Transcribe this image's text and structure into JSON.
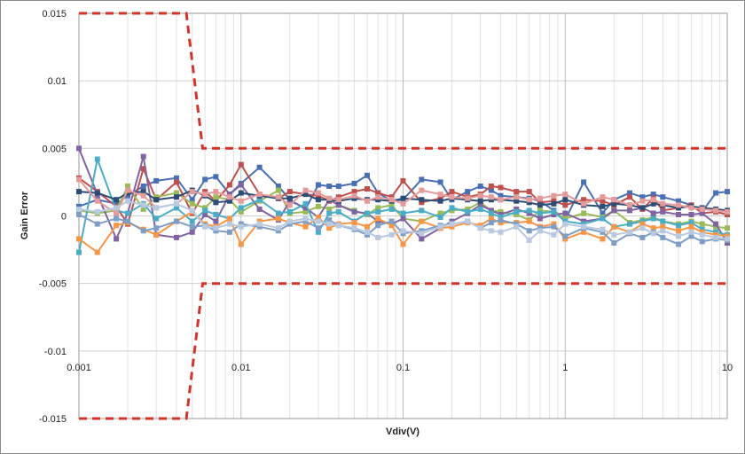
{
  "chart_data": {
    "type": "line",
    "xlabel": "Vdiv(V)",
    "ylabel": "Gain Error",
    "x_scale": "log",
    "xlim": [
      0.001,
      10
    ],
    "ylim": [
      -0.015,
      0.015
    ],
    "grid": true,
    "legend": "none",
    "x_tick_labels": [
      "0.001",
      "0.01",
      "0.1",
      "1",
      "10"
    ],
    "y_tick_labels": [
      "0.015",
      "0.01",
      "0.005",
      "0",
      "-0.005",
      "-0.01",
      "-0.015"
    ],
    "x": [
      0.001,
      0.0013,
      0.0017,
      0.002,
      0.0025,
      0.003,
      0.004,
      0.005,
      0.006,
      0.007,
      0.0085,
      0.01,
      0.013,
      0.017,
      0.02,
      0.025,
      0.03,
      0.035,
      0.04,
      0.05,
      0.06,
      0.07,
      0.085,
      0.1,
      0.13,
      0.17,
      0.2,
      0.25,
      0.3,
      0.35,
      0.4,
      0.5,
      0.6,
      0.7,
      0.85,
      1,
      1.3,
      1.7,
      2,
      2.5,
      3,
      3.5,
      4,
      5,
      6,
      7,
      8.5,
      10
    ],
    "limits": [
      {
        "name": "upper",
        "color": "#d2332b",
        "x": [
          0.001,
          0.0046,
          0.0058,
          10
        ],
        "y": [
          0.015,
          0.015,
          0.005,
          0.005
        ]
      },
      {
        "name": "lower",
        "color": "#d2332b",
        "x": [
          0.001,
          0.0046,
          0.0058,
          10
        ],
        "y": [
          -0.015,
          -0.015,
          -0.005,
          -0.005
        ]
      }
    ],
    "series": [
      {
        "color": "#4a6fb5",
        "values": [
          0.0007,
          0.0012,
          0.0009,
          0.0015,
          0.0022,
          0.0026,
          0.0028,
          0.0012,
          0.0027,
          0.0029,
          0.0016,
          0.0024,
          0.0036,
          0.0022,
          0.0012,
          0.0005,
          0.0023,
          0.0022,
          0.0022,
          0.0024,
          0.003,
          0.0017,
          0.0011,
          0.0012,
          0.0027,
          0.0025,
          0.0012,
          0.0018,
          0.0022,
          0.0019,
          0.0015,
          0.0014,
          0.0013,
          0.0011,
          0.0004,
          -0.0003,
          0.0025,
          0.0002,
          0.0012,
          0.0017,
          0.0014,
          0.0016,
          0.0014,
          0.0011,
          0.0008,
          0.0003,
          0.0017,
          0.0018
        ]
      },
      {
        "color": "#c0504d",
        "values": [
          0.0028,
          0.0018,
          0.0007,
          -0.0006,
          0.0035,
          0.0012,
          0.0025,
          0.0002,
          0.0018,
          0.0011,
          0.0023,
          0.0038,
          0.0016,
          0.0013,
          0.0018,
          0.0016,
          0.0015,
          0.0011,
          0.0014,
          0.0018,
          0.002,
          0.0017,
          0.0014,
          0.0026,
          0.001,
          0.0013,
          0.0018,
          0.0014,
          0.0016,
          0.0022,
          0.0021,
          0.0018,
          0.0018,
          0.001,
          0.0011,
          0.0008,
          0.0012,
          0.0011,
          0.0008,
          0.0014,
          0.0005,
          0.0013,
          0.0004,
          0.0006,
          0.0008,
          0.0002,
          0.0003,
          0.0001
        ]
      },
      {
        "color": "#9bbb59",
        "values": [
          0.0004,
          0.0002,
          0.0004,
          0.0022,
          0.0005,
          0.0014,
          0.0017,
          0.0009,
          0.0006,
          0.0014,
          0.0012,
          0.0003,
          0.0011,
          0.0019,
          0.0002,
          0.0003,
          0.0007,
          0.0005,
          0.0008,
          0.0004,
          0.0001,
          0.0006,
          0.0008,
          -0.0002,
          -0.0004,
          0.0002,
          0.0004,
          0.0005,
          0.001,
          0.0004,
          0.0003,
          0.0001,
          -0.0003,
          0.0004,
          0.0003,
          -0.0002,
          0.0002,
          -0.0001,
          0.0004,
          -0.0005,
          -0.0003,
          -0.0001,
          -0.0004,
          -0.0006,
          -0.0004,
          -0.0006,
          -0.0008,
          -0.0009
        ]
      },
      {
        "color": "#8064a2",
        "values": [
          0.005,
          0.0016,
          -0.0017,
          0.0002,
          0.0044,
          -0.0014,
          -0.0016,
          -0.0012,
          0.0001,
          -0.0004,
          0.0016,
          0.0023,
          0.0005,
          -0.0003,
          0.0011,
          0.0006,
          -0.0001,
          0.0012,
          0.0008,
          0.0003,
          0.0002,
          -0.0004,
          -0.0006,
          -0.0002,
          -0.0017,
          -0.0009,
          -0.0004,
          0.0002,
          0.0008,
          0.0004,
          0.0001,
          0.0005,
          0.0002,
          -0.0002,
          0.0001,
          0.0002,
          -0.0004,
          -0.0002,
          0.0004,
          0.0004,
          0.0006,
          0.0002,
          0.0003,
          0.0001,
          0.0001,
          0.0002,
          -0.0006,
          -0.002
        ]
      },
      {
        "color": "#4bacc6",
        "values": [
          -0.0027,
          0.0042,
          0.0004,
          0.0002,
          0.0009,
          -0.0002,
          0.0006,
          -0.0004,
          0.0004,
          0.0001,
          -0.0002,
          0.0006,
          0.0012,
          0.0002,
          0.0003,
          0.0009,
          -0.0012,
          0.0002,
          0.0003,
          -0.0004,
          0.0002,
          0.0003,
          0.0005,
          0.0002,
          0.0004,
          -0.0001,
          0.0006,
          0.0003,
          0.0005,
          0.0002,
          -0.0001,
          0.0003,
          0.0004,
          0.0002,
          0.0003,
          -0.0004,
          -0.0006,
          -0.0002,
          -0.0008,
          -0.0006,
          -0.0004,
          -0.0002,
          -0.0004,
          -0.0007,
          -0.0005,
          -0.001,
          -0.0012,
          -0.0014
        ]
      },
      {
        "color": "#f79646",
        "values": [
          -0.0017,
          -0.0027,
          -0.0007,
          -0.0005,
          -0.001,
          -0.0014,
          -0.0004,
          0.0003,
          -0.0006,
          -0.0008,
          -0.0002,
          -0.0021,
          -0.0004,
          -0.0002,
          -0.0005,
          -0.0008,
          -0.0001,
          -0.0009,
          -0.0006,
          -0.0005,
          -0.0008,
          -0.0002,
          -0.0007,
          -0.0021,
          -0.0004,
          -0.0009,
          -0.0008,
          -0.0005,
          -0.0007,
          -0.0002,
          -0.0005,
          -0.0005,
          -0.0004,
          -0.0008,
          -0.0006,
          -0.0017,
          -0.0012,
          -0.0017,
          -0.0008,
          -0.0012,
          -0.0006,
          -0.0009,
          -0.0008,
          -0.0011,
          -0.0008,
          -0.0012,
          -0.0014,
          -0.0015
        ]
      },
      {
        "color": "#2c4d75",
        "values": [
          0.0018,
          0.0017,
          0.0012,
          0.0017,
          0.0018,
          0.0012,
          0.0014,
          0.0019,
          0.0015,
          0.001,
          0.0011,
          0.0017,
          0.0015,
          0.0013,
          0.0013,
          0.0016,
          0.0012,
          0.0012,
          0.0011,
          0.0013,
          0.0012,
          0.0012,
          0.0011,
          0.0013,
          0.0012,
          0.0011,
          0.0013,
          0.0012,
          0.0011,
          0.0012,
          0.0012,
          0.0011,
          0.001,
          0.0008,
          0.0009,
          0.0012,
          0.0008,
          0.0007,
          0.0009,
          0.0008,
          0.0006,
          0.0009,
          0.0008,
          0.0006,
          0.0007,
          0.0006,
          0.0005,
          0.0004
        ]
      },
      {
        "color": "#7f9ec6",
        "values": [
          0.0001,
          -0.0006,
          -0.0002,
          -0.0004,
          -0.0011,
          -0.0009,
          -0.0004,
          -0.0008,
          -0.0007,
          -0.0011,
          -0.0012,
          -0.0006,
          -0.0008,
          -0.0011,
          -0.0006,
          -0.0004,
          -0.0009,
          -0.0003,
          -0.0007,
          -0.001,
          -0.0014,
          -0.0007,
          -0.0004,
          -0.0013,
          -0.0011,
          -0.0007,
          -0.0006,
          -0.0004,
          -0.0009,
          -0.0005,
          -0.0003,
          -0.0006,
          -0.0011,
          -0.0009,
          -0.0008,
          -0.0015,
          -0.0009,
          -0.0012,
          -0.002,
          -0.0013,
          -0.0016,
          -0.0012,
          -0.0016,
          -0.0021,
          -0.0015,
          -0.0019,
          -0.0017,
          -0.0018
        ]
      },
      {
        "color": "#e59b9b",
        "values": [
          0.0027,
          0.0011,
          0.0002,
          0.0019,
          0.0015,
          0.0006,
          0.0009,
          0.0018,
          0.0016,
          0.0018,
          0.0014,
          0.0011,
          0.0016,
          0.0014,
          0.0008,
          0.0019,
          0.0017,
          0.0013,
          0.0012,
          0.0015,
          0.0011,
          0.0014,
          0.0012,
          0.0009,
          0.0019,
          0.0016,
          0.0014,
          0.0013,
          0.0015,
          0.0014,
          0.0012,
          0.0014,
          0.0012,
          0.0013,
          0.0015,
          0.0016,
          0.0009,
          0.0014,
          0.0012,
          0.0008,
          0.0011,
          0.0012,
          0.0009,
          0.0008,
          0.0006,
          0.0005,
          0.0004,
          0.0003
        ]
      },
      {
        "color": "#b9c9e0",
        "values": [
          0.0005,
          0.0003,
          0.0006,
          0.0011,
          0.0008,
          0.0006,
          0.0009,
          0.0004,
          -0.0008,
          -0.0009,
          -0.0006,
          -0.0008,
          -0.0006,
          -0.0009,
          -0.0004,
          -0.0002,
          -0.0004,
          -0.0006,
          -0.0007,
          -0.0009,
          -0.0012,
          -0.0016,
          -0.0014,
          -0.0011,
          -0.0013,
          -0.0008,
          -0.0006,
          -0.0004,
          -0.0009,
          -0.0011,
          -0.0012,
          -0.0008,
          -0.0018,
          -0.0011,
          -0.0014,
          -0.0006,
          -0.0008,
          -0.001,
          -0.0014,
          -0.0012,
          -0.0009,
          -0.0013,
          -0.0011,
          -0.0015,
          -0.0012,
          -0.0014,
          -0.0016,
          -0.0017
        ]
      }
    ]
  }
}
